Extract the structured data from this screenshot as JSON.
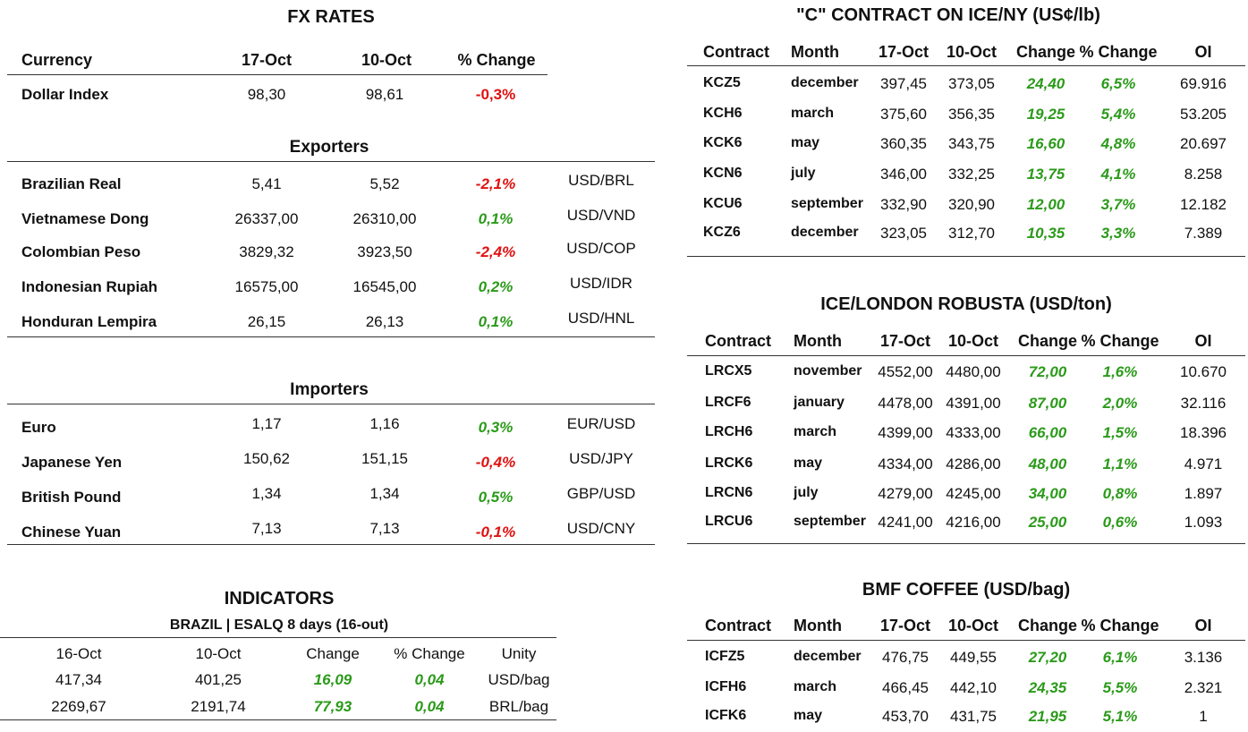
{
  "fx": {
    "title": "FX RATES",
    "headers": {
      "currency": "Currency",
      "d1": "17-Oct",
      "d2": "10-Oct",
      "change": "% Change"
    },
    "dollar_index": {
      "name": "Dollar Index",
      "v1": "98,30",
      "v2": "98,61",
      "chg": "-0,3%"
    },
    "exporters_title": "Exporters",
    "exporters": [
      {
        "name": "Brazilian Real",
        "v1": "5,41",
        "v2": "5,52",
        "chg": "-2,1%",
        "pair": "USD/BRL"
      },
      {
        "name": "Vietnamese Dong",
        "v1": "26337,00",
        "v2": "26310,00",
        "chg": "0,1%",
        "pair": "USD/VND"
      },
      {
        "name": "Colombian Peso",
        "v1": "3829,32",
        "v2": "3923,50",
        "chg": "-2,4%",
        "pair": "USD/COP"
      },
      {
        "name": "Indonesian Rupiah",
        "v1": "16575,00",
        "v2": "16545,00",
        "chg": "0,2%",
        "pair": "USD/IDR"
      },
      {
        "name": "Honduran Lempira",
        "v1": "26,15",
        "v2": "26,13",
        "chg": "0,1%",
        "pair": "USD/HNL"
      }
    ],
    "importers_title": "Importers",
    "importers": [
      {
        "name": "Euro",
        "v1": "1,17",
        "v2": "1,16",
        "chg": "0,3%",
        "pair": "EUR/USD"
      },
      {
        "name": "Japanese Yen",
        "v1": "150,62",
        "v2": "151,15",
        "chg": "-0,4%",
        "pair": "USD/JPY"
      },
      {
        "name": "British Pound",
        "v1": "1,34",
        "v2": "1,34",
        "chg": "0,5%",
        "pair": "GBP/USD"
      },
      {
        "name": "Chinese Yuan",
        "v1": "7,13",
        "v2": "7,13",
        "chg": "-0,1%",
        "pair": "USD/CNY"
      }
    ]
  },
  "indicators": {
    "title": "INDICATORS",
    "subtitle": "BRAZIL | ESALQ 8 days (16-out)",
    "headers": [
      "16-Oct",
      "10-Oct",
      "Change",
      "% Change",
      "Unity"
    ],
    "rows": [
      {
        "v1": "417,34",
        "v2": "401,25",
        "chg": "16,09",
        "pct": "0,04",
        "unit": "USD/bag"
      },
      {
        "v1": "2269,67",
        "v2": "2191,74",
        "chg": "77,93",
        "pct": "0,04",
        "unit": "BRL/bag"
      }
    ]
  },
  "ice_ny": {
    "title": "\"C\" CONTRACT ON ICE/NY (US¢/lb)",
    "headers": [
      "Contract",
      "Month",
      "17-Oct",
      "10-Oct",
      "Change",
      "% Change",
      "OI"
    ],
    "rows": [
      {
        "contract": "KCZ5",
        "month": "december",
        "v1": "397,45",
        "v2": "373,05",
        "chg": "24,40",
        "pct": "6,5%",
        "oi": "69.916"
      },
      {
        "contract": "KCH6",
        "month": "march",
        "v1": "375,60",
        "v2": "356,35",
        "chg": "19,25",
        "pct": "5,4%",
        "oi": "53.205"
      },
      {
        "contract": "KCK6",
        "month": "may",
        "v1": "360,35",
        "v2": "343,75",
        "chg": "16,60",
        "pct": "4,8%",
        "oi": "20.697"
      },
      {
        "contract": "KCN6",
        "month": "july",
        "v1": "346,00",
        "v2": "332,25",
        "chg": "13,75",
        "pct": "4,1%",
        "oi": "8.258"
      },
      {
        "contract": "KCU6",
        "month": "september",
        "v1": "332,90",
        "v2": "320,90",
        "chg": "12,00",
        "pct": "3,7%",
        "oi": "12.182"
      },
      {
        "contract": "KCZ6",
        "month": "december",
        "v1": "323,05",
        "v2": "312,70",
        "chg": "10,35",
        "pct": "3,3%",
        "oi": "7.389"
      }
    ]
  },
  "robusta": {
    "title": "ICE/LONDON ROBUSTA (USD/ton)",
    "headers": [
      "Contract",
      "Month",
      "17-Oct",
      "10-Oct",
      "Change",
      "% Change",
      "OI"
    ],
    "rows": [
      {
        "contract": "LRCX5",
        "month": "november",
        "v1": "4552,00",
        "v2": "4480,00",
        "chg": "72,00",
        "pct": "1,6%",
        "oi": "10.670"
      },
      {
        "contract": "LRCF6",
        "month": "january",
        "v1": "4478,00",
        "v2": "4391,00",
        "chg": "87,00",
        "pct": "2,0%",
        "oi": "32.116"
      },
      {
        "contract": "LRCH6",
        "month": "march",
        "v1": "4399,00",
        "v2": "4333,00",
        "chg": "66,00",
        "pct": "1,5%",
        "oi": "18.396"
      },
      {
        "contract": "LRCK6",
        "month": "may",
        "v1": "4334,00",
        "v2": "4286,00",
        "chg": "48,00",
        "pct": "1,1%",
        "oi": "4.971"
      },
      {
        "contract": "LRCN6",
        "month": "july",
        "v1": "4279,00",
        "v2": "4245,00",
        "chg": "34,00",
        "pct": "0,8%",
        "oi": "1.897"
      },
      {
        "contract": "LRCU6",
        "month": "september",
        "v1": "4241,00",
        "v2": "4216,00",
        "chg": "25,00",
        "pct": "0,6%",
        "oi": "1.093"
      }
    ]
  },
  "bmf": {
    "title": "BMF COFFEE (USD/bag)",
    "headers": [
      "Contract",
      "Month",
      "17-Oct",
      "10-Oct",
      "Change",
      "% Change",
      "OI"
    ],
    "rows": [
      {
        "contract": "ICFZ5",
        "month": "december",
        "v1": "476,75",
        "v2": "449,55",
        "chg": "27,20",
        "pct": "6,1%",
        "oi": "3.136"
      },
      {
        "contract": "ICFH6",
        "month": "march",
        "v1": "466,45",
        "v2": "442,10",
        "chg": "24,35",
        "pct": "5,5%",
        "oi": "2.321"
      },
      {
        "contract": "ICFK6",
        "month": "may",
        "v1": "453,70",
        "v2": "431,75",
        "chg": "21,95",
        "pct": "5,1%",
        "oi": "1"
      }
    ]
  },
  "colors": {
    "positive": "#2b9a1a",
    "negative": "#e01010",
    "rule": "#333333"
  }
}
